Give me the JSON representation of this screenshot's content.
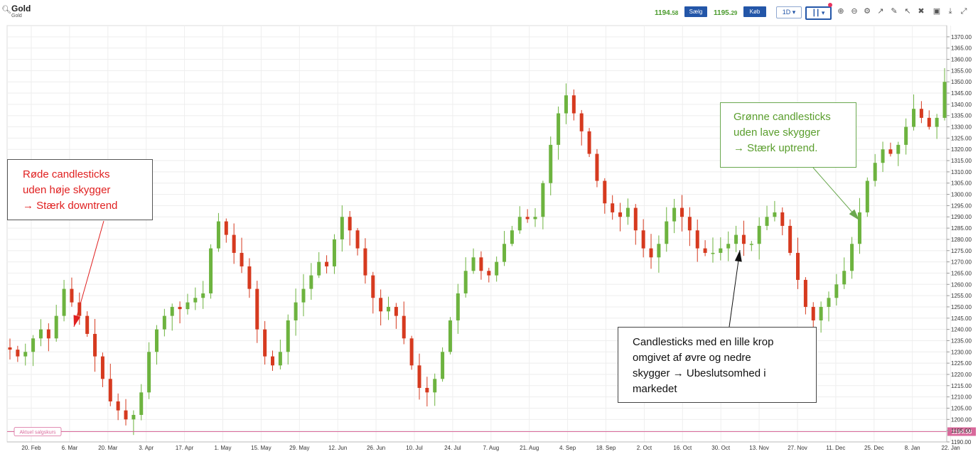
{
  "header": {
    "symbol": "Gold",
    "symbol_sub": "Gold",
    "sell_price_main": "1194.",
    "sell_price_small": "58",
    "sell_label": "Sælg",
    "buy_price_main": "1195.",
    "buy_price_small": "29",
    "buy_label": "Køb",
    "timeframe": "1D",
    "icons": [
      "zoom-in-icon",
      "zoom-out-icon",
      "settings-icon",
      "trend-icon",
      "draw-icon",
      "cursor-icon",
      "tools-icon",
      "camera-icon",
      "download-icon",
      "fullscreen-icon"
    ]
  },
  "current_price": {
    "label": "Aktuel salgskurs",
    "value": "1194.58"
  },
  "annotations": {
    "red": [
      "Røde candlesticks",
      "uden høje skygger",
      "→ Stærk downtrend"
    ],
    "green": [
      "Grønne candlesticks",
      "uden lave skygger",
      "→ Stærk uptrend."
    ],
    "black": [
      "Candlesticks med en lille krop",
      "omgivet af øvre og nedre",
      "skygger → Ubeslutsomhed i",
      "markedet"
    ]
  },
  "colors": {
    "up": "#6db33f",
    "down": "#d63a1f",
    "accent": "#2356a8",
    "current_price": "#d9699b"
  },
  "chart_data": {
    "type": "candlestick",
    "ylim": [
      1190,
      1375
    ],
    "y_ticks": [
      "1370.00",
      "1365.00",
      "1360.00",
      "1355.00",
      "1350.00",
      "1345.00",
      "1340.00",
      "1335.00",
      "1330.00",
      "1325.00",
      "1320.00",
      "1315.00",
      "1310.00",
      "1305.00",
      "1300.00",
      "1295.00",
      "1290.00",
      "1285.00",
      "1280.00",
      "1275.00",
      "1270.00",
      "1265.00",
      "1260.00",
      "1255.00",
      "1250.00",
      "1245.00",
      "1240.00",
      "1235.00",
      "1230.00",
      "1225.00",
      "1220.00",
      "1215.00",
      "1210.00",
      "1205.00",
      "1200.00",
      "1195.00",
      "1190.00"
    ],
    "x_ticks": [
      "20. Feb",
      "6. Mar",
      "20. Mar",
      "3. Apr",
      "17. Apr",
      "1. May",
      "15. May",
      "29. May",
      "12. Jun",
      "26. Jun",
      "10. Jul",
      "24. Jul",
      "7. Aug",
      "21. Aug",
      "4. Sep",
      "18. Sep",
      "2. Oct",
      "16. Oct",
      "30. Oct",
      "13. Nov",
      "27. Nov",
      "11. Dec",
      "25. Dec",
      "8. Jan",
      "22. Jan"
    ],
    "close_path": [
      1231,
      1228,
      1230,
      1236,
      1240,
      1236,
      1246,
      1258,
      1252,
      1246,
      1238,
      1228,
      1218,
      1208,
      1204,
      1200,
      1202,
      1212,
      1230,
      1240,
      1246,
      1250,
      1249,
      1252,
      1254,
      1256,
      1276,
      1288,
      1282,
      1274,
      1268,
      1258,
      1240,
      1228,
      1224,
      1230,
      1244,
      1252,
      1258,
      1264,
      1270,
      1268,
      1280,
      1290,
      1284,
      1276,
      1264,
      1254,
      1248,
      1250,
      1246,
      1236,
      1224,
      1214,
      1212,
      1218,
      1230,
      1244,
      1256,
      1266,
      1272,
      1266,
      1264,
      1270,
      1278,
      1284,
      1290,
      1289,
      1290,
      1305,
      1322,
      1336,
      1344,
      1336,
      1328,
      1318,
      1306,
      1296,
      1292,
      1290,
      1294,
      1284,
      1276,
      1272,
      1278,
      1288,
      1294,
      1290,
      1284,
      1276,
      1274,
      1274,
      1276,
      1278,
      1282,
      1278,
      1278,
      1286,
      1290,
      1292,
      1286,
      1274,
      1262,
      1250,
      1244,
      1250,
      1254,
      1260,
      1266,
      1278,
      1292,
      1306,
      1314,
      1320,
      1318,
      1322,
      1330,
      1338,
      1334,
      1330,
      1334,
      1350
    ],
    "current_price": 1194.58
  }
}
